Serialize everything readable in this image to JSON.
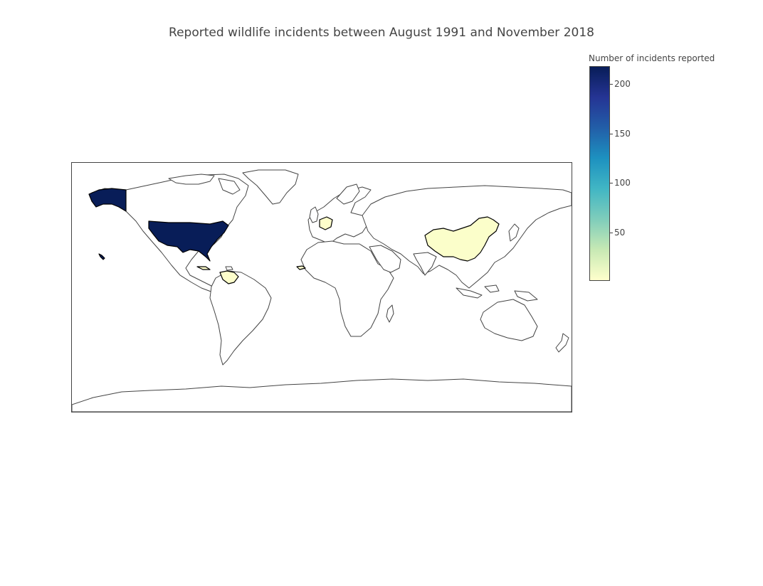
{
  "title": "Reported wildlife incidents between August 1991 and November 2018",
  "colorbar": {
    "title": "Number of incidents reported",
    "range": [
      1,
      218
    ],
    "ticks": [
      {
        "label": "200",
        "value": 200
      },
      {
        "label": "150",
        "value": 150
      },
      {
        "label": "100",
        "value": 100
      },
      {
        "label": "50",
        "value": 50
      }
    ],
    "colorscale": "YlGnBu",
    "colors": [
      "#ffffcc",
      "#c7e9b4",
      "#7fcdbb",
      "#41b6c4",
      "#1d91c0",
      "#225ea8",
      "#253494",
      "#081d58"
    ]
  },
  "chart_data": {
    "type": "choropleth",
    "projection": "equirectangular",
    "z_range": [
      1,
      218
    ],
    "regions": [
      {
        "location": "United States",
        "value": 218
      },
      {
        "location": "China",
        "value": 3
      },
      {
        "location": "France",
        "value": 2
      },
      {
        "location": "Venezuela",
        "value": 2
      },
      {
        "location": "Cuba",
        "value": 1
      },
      {
        "location": "Gambia",
        "value": 1
      }
    ]
  }
}
